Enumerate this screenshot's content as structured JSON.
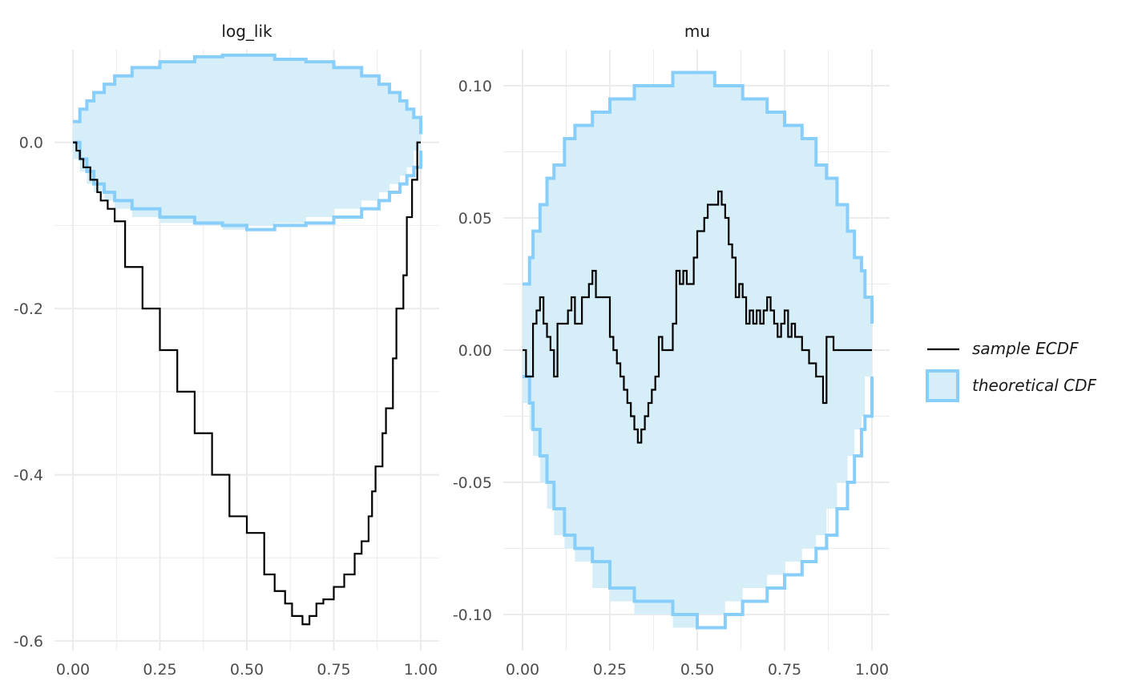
{
  "chart_data": [
    {
      "type": "line",
      "title": "log_lik",
      "xlabel": "",
      "ylabel": "",
      "xlim": [
        0,
        1
      ],
      "ylim": [
        -0.6,
        0.1
      ],
      "x_ticks": [
        "0.00",
        "0.25",
        "0.50",
        "0.75",
        "1.00"
      ],
      "x_tick_values": [
        0,
        0.25,
        0.5,
        0.75,
        1
      ],
      "y_ticks": [
        "0.0",
        "-0.2",
        "-0.4",
        "-0.6"
      ],
      "y_tick_values": [
        0,
        -0.2,
        -0.4,
        -0.6
      ],
      "grid": true,
      "series": [
        {
          "name": "sample ECDF",
          "type": "step",
          "color": "#000000",
          "x": [
            0,
            0.01,
            0.02,
            0.03,
            0.05,
            0.07,
            0.08,
            0.1,
            0.12,
            0.15,
            0.2,
            0.25,
            0.3,
            0.35,
            0.4,
            0.45,
            0.5,
            0.55,
            0.58,
            0.61,
            0.63,
            0.66,
            0.68,
            0.7,
            0.72,
            0.75,
            0.78,
            0.81,
            0.83,
            0.85,
            0.86,
            0.87,
            0.89,
            0.9,
            0.92,
            0.93,
            0.95,
            0.96,
            0.975,
            0.99,
            1.0
          ],
          "y": [
            0,
            -0.01,
            -0.02,
            -0.03,
            -0.045,
            -0.06,
            -0.07,
            -0.08,
            -0.095,
            -0.15,
            -0.2,
            -0.25,
            -0.3,
            -0.35,
            -0.4,
            -0.45,
            -0.47,
            -0.52,
            -0.54,
            -0.555,
            -0.57,
            -0.58,
            -0.57,
            -0.555,
            -0.55,
            -0.535,
            -0.52,
            -0.495,
            -0.48,
            -0.45,
            -0.42,
            -0.39,
            -0.35,
            -0.32,
            -0.26,
            -0.2,
            -0.16,
            -0.09,
            -0.045,
            0,
            0
          ]
        },
        {
          "name": "theoretical CDF",
          "type": "band",
          "color": "#87cefa",
          "upper": [
            [
              0,
              0.025
            ],
            [
              0.02,
              0.04
            ],
            [
              0.04,
              0.05
            ],
            [
              0.06,
              0.06
            ],
            [
              0.09,
              0.07
            ],
            [
              0.12,
              0.08
            ],
            [
              0.17,
              0.09
            ],
            [
              0.25,
              0.097
            ],
            [
              0.35,
              0.103
            ],
            [
              0.43,
              0.105
            ],
            [
              0.5,
              0.105
            ],
            [
              0.58,
              0.1
            ],
            [
              0.67,
              0.097
            ],
            [
              0.75,
              0.09
            ],
            [
              0.83,
              0.08
            ],
            [
              0.88,
              0.07
            ],
            [
              0.91,
              0.06
            ],
            [
              0.94,
              0.05
            ],
            [
              0.96,
              0.04
            ],
            [
              0.98,
              0.03
            ],
            [
              1.0,
              0.01
            ]
          ],
          "lower": [
            [
              0,
              0
            ],
            [
              0.02,
              -0.02
            ],
            [
              0.04,
              -0.035
            ],
            [
              0.06,
              -0.05
            ],
            [
              0.09,
              -0.06
            ],
            [
              0.12,
              -0.07
            ],
            [
              0.17,
              -0.08
            ],
            [
              0.25,
              -0.09
            ],
            [
              0.35,
              -0.097
            ],
            [
              0.43,
              -0.1
            ],
            [
              0.5,
              -0.105
            ],
            [
              0.58,
              -0.1
            ],
            [
              0.67,
              -0.097
            ],
            [
              0.75,
              -0.09
            ],
            [
              0.83,
              -0.08
            ],
            [
              0.88,
              -0.07
            ],
            [
              0.91,
              -0.06
            ],
            [
              0.94,
              -0.05
            ],
            [
              0.96,
              -0.04
            ],
            [
              0.98,
              -0.03
            ],
            [
              1.0,
              -0.01
            ]
          ]
        }
      ]
    },
    {
      "type": "line",
      "title": "mu",
      "xlabel": "",
      "ylabel": "",
      "xlim": [
        0,
        1
      ],
      "ylim": [
        -0.11,
        0.11
      ],
      "x_ticks": [
        "0.00",
        "0.25",
        "0.50",
        "0.75",
        "1.00"
      ],
      "x_tick_values": [
        0,
        0.25,
        0.5,
        0.75,
        1
      ],
      "y_ticks": [
        "0.10",
        "0.05",
        "0.00",
        "-0.05",
        "-0.10"
      ],
      "y_tick_values": [
        0.1,
        0.05,
        0,
        -0.05,
        -0.1
      ],
      "grid": true,
      "series": [
        {
          "name": "sample ECDF",
          "type": "step",
          "color": "#000000",
          "x": [
            0,
            0.01,
            0.02,
            0.03,
            0.04,
            0.05,
            0.06,
            0.07,
            0.08,
            0.09,
            0.1,
            0.13,
            0.14,
            0.15,
            0.16,
            0.17,
            0.18,
            0.19,
            0.2,
            0.21,
            0.22,
            0.25,
            0.26,
            0.27,
            0.28,
            0.29,
            0.3,
            0.31,
            0.32,
            0.33,
            0.34,
            0.35,
            0.36,
            0.37,
            0.38,
            0.39,
            0.4,
            0.43,
            0.44,
            0.45,
            0.46,
            0.47,
            0.48,
            0.49,
            0.5,
            0.52,
            0.53,
            0.56,
            0.57,
            0.58,
            0.59,
            0.6,
            0.61,
            0.62,
            0.63,
            0.64,
            0.65,
            0.66,
            0.67,
            0.68,
            0.69,
            0.7,
            0.71,
            0.72,
            0.73,
            0.74,
            0.75,
            0.76,
            0.77,
            0.78,
            0.79,
            0.8,
            0.81,
            0.82,
            0.83,
            0.84,
            0.85,
            0.86,
            0.87,
            0.88,
            0.89,
            0.9,
            0.91,
            0.92,
            0.93,
            0.94,
            0.95,
            0.96,
            0.97,
            0.98,
            0.99,
            1.0
          ],
          "y": [
            0,
            -0.01,
            -0.01,
            0.01,
            0.015,
            0.02,
            0.01,
            0.005,
            0,
            -0.01,
            0.01,
            0.015,
            0.02,
            0.01,
            0.01,
            0.02,
            0.02,
            0.025,
            0.03,
            0.02,
            0.02,
            0.005,
            0,
            -0.005,
            -0.01,
            -0.015,
            -0.02,
            -0.025,
            -0.03,
            -0.035,
            -0.03,
            -0.025,
            -0.02,
            -0.015,
            -0.01,
            0.005,
            0,
            0.01,
            0.03,
            0.025,
            0.03,
            0.025,
            0.025,
            0.035,
            0.045,
            0.05,
            0.055,
            0.06,
            0.055,
            0.05,
            0.04,
            0.035,
            0.02,
            0.025,
            0.02,
            0.01,
            0.015,
            0.01,
            0.015,
            0.01,
            0.015,
            0.02,
            0.015,
            0.01,
            0.005,
            0.01,
            0.015,
            0.005,
            0.01,
            0.005,
            0.005,
            0,
            0,
            -0.005,
            -0.005,
            -0.01,
            -0.01,
            -0.02,
            0.005,
            0.005,
            0,
            0,
            0,
            0,
            0,
            0,
            0,
            0,
            0,
            0,
            0,
            0
          ]
        },
        {
          "name": "theoretical CDF",
          "type": "band",
          "color": "#87cefa",
          "upper": [
            [
              0,
              0.025
            ],
            [
              0.02,
              0.035
            ],
            [
              0.03,
              0.045
            ],
            [
              0.05,
              0.055
            ],
            [
              0.07,
              0.065
            ],
            [
              0.09,
              0.07
            ],
            [
              0.12,
              0.08
            ],
            [
              0.15,
              0.085
            ],
            [
              0.2,
              0.09
            ],
            [
              0.25,
              0.095
            ],
            [
              0.32,
              0.1
            ],
            [
              0.43,
              0.105
            ],
            [
              0.5,
              0.105
            ],
            [
              0.55,
              0.1
            ],
            [
              0.63,
              0.095
            ],
            [
              0.7,
              0.09
            ],
            [
              0.75,
              0.085
            ],
            [
              0.8,
              0.08
            ],
            [
              0.84,
              0.07
            ],
            [
              0.87,
              0.065
            ],
            [
              0.9,
              0.055
            ],
            [
              0.93,
              0.045
            ],
            [
              0.95,
              0.035
            ],
            [
              0.97,
              0.03
            ],
            [
              0.98,
              0.02
            ],
            [
              1.0,
              0.01
            ]
          ],
          "lower": [
            [
              0,
              -0.01
            ],
            [
              0.02,
              -0.02
            ],
            [
              0.03,
              -0.03
            ],
            [
              0.05,
              -0.04
            ],
            [
              0.07,
              -0.05
            ],
            [
              0.09,
              -0.06
            ],
            [
              0.12,
              -0.07
            ],
            [
              0.15,
              -0.075
            ],
            [
              0.2,
              -0.08
            ],
            [
              0.25,
              -0.09
            ],
            [
              0.32,
              -0.095
            ],
            [
              0.43,
              -0.1
            ],
            [
              0.5,
              -0.105
            ],
            [
              0.58,
              -0.1
            ],
            [
              0.63,
              -0.095
            ],
            [
              0.7,
              -0.09
            ],
            [
              0.75,
              -0.085
            ],
            [
              0.8,
              -0.08
            ],
            [
              0.84,
              -0.075
            ],
            [
              0.87,
              -0.07
            ],
            [
              0.9,
              -0.06
            ],
            [
              0.93,
              -0.05
            ],
            [
              0.95,
              -0.04
            ],
            [
              0.97,
              -0.03
            ],
            [
              0.98,
              -0.025
            ],
            [
              1.0,
              -0.01
            ]
          ]
        }
      ]
    }
  ],
  "legend": {
    "items": [
      {
        "label": "sample ECDF",
        "kind": "line",
        "color": "#000000"
      },
      {
        "label": "theoretical CDF",
        "kind": "fill",
        "color": "#87cefa"
      }
    ],
    "placement": "right"
  },
  "colors": {
    "grid": "#ebebeb",
    "band_fill": "#d6eef8",
    "band_stroke": "#87cefa",
    "ecdf": "#000000"
  }
}
